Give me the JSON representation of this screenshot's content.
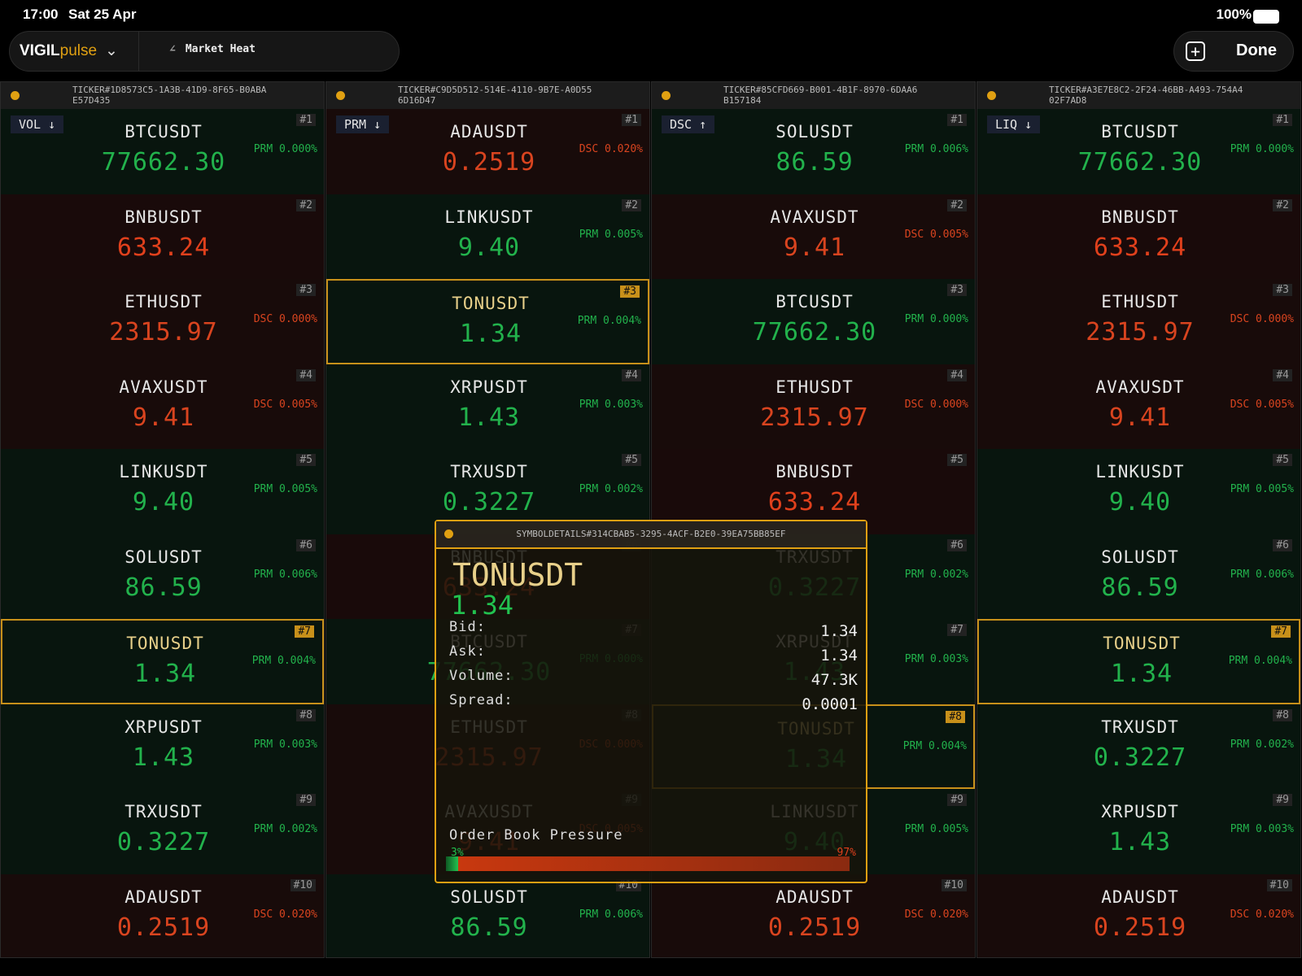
{
  "status": {
    "time": "17:00",
    "date": "Sat 25 Apr",
    "battery": "100%"
  },
  "toolbar": {
    "brand": "VIGIL",
    "brand_suffix": "pulse",
    "view": "Market Heat",
    "done": "Done"
  },
  "panels": [
    {
      "id": "TICKER#1D8573C5-1A3B-41D9-8F65-B0ABAE57D435",
      "sort": "VOL ↓",
      "rows": [
        {
          "rank": "#1",
          "symbol": "BTCUSDT",
          "price": "77662.30",
          "tag": "PRM 0.000%",
          "color": "#22b24c"
        },
        {
          "rank": "#2",
          "symbol": "BNBUSDT",
          "price": "633.24",
          "color": "#e0401c"
        },
        {
          "rank": "#3",
          "symbol": "ETHUSDT",
          "price": "2315.97",
          "tag": "DSC 0.000%",
          "color": "#d9441f"
        },
        {
          "rank": "#4",
          "symbol": "AVAXUSDT",
          "price": "9.41",
          "tag": "DSC 0.005%",
          "color": "#d9441f"
        },
        {
          "rank": "#5",
          "symbol": "LINKUSDT",
          "price": "9.40",
          "tag": "PRM 0.005%",
          "color": "#22b24c"
        },
        {
          "rank": "#6",
          "symbol": "SOLUSDT",
          "price": "86.59",
          "tag": "PRM 0.006%",
          "color": "#22b24c"
        },
        {
          "rank": "#7",
          "symbol": "TONUSDT",
          "price": "1.34",
          "tag": "PRM 0.004%",
          "color": "#22b24c",
          "highlight": true
        },
        {
          "rank": "#8",
          "symbol": "XRPUSDT",
          "price": "1.43",
          "tag": "PRM 0.003%",
          "color": "#22b24c"
        },
        {
          "rank": "#9",
          "symbol": "TRXUSDT",
          "price": "0.3227",
          "tag": "PRM 0.002%",
          "color": "#22b24c"
        },
        {
          "rank": "#10",
          "symbol": "ADAUSDT",
          "price": "0.2519",
          "tag": "DSC 0.020%",
          "color": "#d9441f"
        }
      ]
    },
    {
      "id": "TICKER#C9D5D512-514E-4110-9B7E-A0D556D16D47",
      "sort": "PRM ↓",
      "rows": [
        {
          "rank": "#1",
          "symbol": "ADAUSDT",
          "price": "0.2519",
          "tag": "DSC 0.020%",
          "color": "#d9441f"
        },
        {
          "rank": "#2",
          "symbol": "LINKUSDT",
          "price": "9.40",
          "tag": "PRM 0.005%",
          "color": "#22b24c"
        },
        {
          "rank": "#3",
          "symbol": "TONUSDT",
          "price": "1.34",
          "tag": "PRM 0.004%",
          "color": "#22b24c",
          "highlight": true
        },
        {
          "rank": "#4",
          "symbol": "XRPUSDT",
          "price": "1.43",
          "tag": "PRM 0.003%",
          "color": "#22b24c"
        },
        {
          "rank": "#5",
          "symbol": "TRXUSDT",
          "price": "0.3227",
          "tag": "PRM 0.002%",
          "color": "#22b24c"
        },
        {
          "rank": "#6",
          "symbol": "BNBUSDT",
          "price": "633.24",
          "color": "#e0401c"
        },
        {
          "rank": "#7",
          "symbol": "BTCUSDT",
          "price": "77662.30",
          "tag": "PRM 0.000%",
          "color": "#22b24c"
        },
        {
          "rank": "#8",
          "symbol": "ETHUSDT",
          "price": "2315.97",
          "tag": "DSC 0.000%",
          "color": "#d9441f"
        },
        {
          "rank": "#9",
          "symbol": "AVAXUSDT",
          "price": "9.41",
          "tag": "DSC 0.005%",
          "color": "#d9441f"
        },
        {
          "rank": "#10",
          "symbol": "SOLUSDT",
          "price": "86.59",
          "tag": "PRM 0.006%",
          "color": "#22b24c"
        }
      ]
    },
    {
      "id": "TICKER#85CFD669-B001-4B1F-8970-6DAA6B157184",
      "sort": "DSC ↑",
      "rows": [
        {
          "rank": "#1",
          "symbol": "SOLUSDT",
          "price": "86.59",
          "tag": "PRM 0.006%",
          "color": "#22b24c"
        },
        {
          "rank": "#2",
          "symbol": "AVAXUSDT",
          "price": "9.41",
          "tag": "DSC 0.005%",
          "color": "#d9441f"
        },
        {
          "rank": "#3",
          "symbol": "BTCUSDT",
          "price": "77662.30",
          "tag": "PRM 0.000%",
          "color": "#22b24c"
        },
        {
          "rank": "#4",
          "symbol": "ETHUSDT",
          "price": "2315.97",
          "tag": "DSC 0.000%",
          "color": "#d9441f"
        },
        {
          "rank": "#5",
          "symbol": "BNBUSDT",
          "price": "633.24",
          "color": "#e0401c"
        },
        {
          "rank": "#6",
          "symbol": "TRXUSDT",
          "price": "0.3227",
          "tag": "PRM 0.002%",
          "color": "#22b24c"
        },
        {
          "rank": "#7",
          "symbol": "XRPUSDT",
          "price": "1.43",
          "tag": "PRM 0.003%",
          "color": "#22b24c"
        },
        {
          "rank": "#8",
          "symbol": "TONUSDT",
          "price": "1.34",
          "tag": "PRM 0.004%",
          "color": "#22b24c",
          "highlight": true
        },
        {
          "rank": "#9",
          "symbol": "LINKUSDT",
          "price": "9.40",
          "tag": "PRM 0.005%",
          "color": "#22b24c"
        },
        {
          "rank": "#10",
          "symbol": "ADAUSDT",
          "price": "0.2519",
          "tag": "DSC 0.020%",
          "color": "#d9441f"
        }
      ]
    },
    {
      "id": "TICKER#A3E7E8C2-2F24-46BB-A493-754A402F7AD8",
      "sort": "LIQ ↓",
      "rows": [
        {
          "rank": "#1",
          "symbol": "BTCUSDT",
          "price": "77662.30",
          "tag": "PRM 0.000%",
          "color": "#22b24c"
        },
        {
          "rank": "#2",
          "symbol": "BNBUSDT",
          "price": "633.24",
          "color": "#e0401c"
        },
        {
          "rank": "#3",
          "symbol": "ETHUSDT",
          "price": "2315.97",
          "tag": "DSC 0.000%",
          "color": "#d9441f"
        },
        {
          "rank": "#4",
          "symbol": "AVAXUSDT",
          "price": "9.41",
          "tag": "DSC 0.005%",
          "color": "#d9441f"
        },
        {
          "rank": "#5",
          "symbol": "LINKUSDT",
          "price": "9.40",
          "tag": "PRM 0.005%",
          "color": "#22b24c"
        },
        {
          "rank": "#6",
          "symbol": "SOLUSDT",
          "price": "86.59",
          "tag": "PRM 0.006%",
          "color": "#22b24c"
        },
        {
          "rank": "#7",
          "symbol": "TONUSDT",
          "price": "1.34",
          "tag": "PRM 0.004%",
          "color": "#22b24c",
          "highlight": true
        },
        {
          "rank": "#8",
          "symbol": "TRXUSDT",
          "price": "0.3227",
          "tag": "PRM 0.002%",
          "color": "#22b24c"
        },
        {
          "rank": "#9",
          "symbol": "XRPUSDT",
          "price": "1.43",
          "tag": "PRM 0.003%",
          "color": "#22b24c"
        },
        {
          "rank": "#10",
          "symbol": "ADAUSDT",
          "price": "0.2519",
          "tag": "DSC 0.020%",
          "color": "#d9441f"
        }
      ]
    }
  ],
  "detail": {
    "id": "SYMBOLDETAILS#314CBAB5-3295-4ACF-B2E0-39EA75BB85EF",
    "symbol": "TONUSDT",
    "price": "1.34",
    "fields": [
      {
        "label": "Bid:",
        "value": "1.34"
      },
      {
        "label": "Ask:",
        "value": "1.34"
      },
      {
        "label": "Volume:",
        "value": "47.3K"
      },
      {
        "label": "Spread:",
        "value": "0.0001"
      }
    ],
    "pressure_title": "Order Book Pressure",
    "pressure": {
      "bid": {
        "value": 3,
        "label": "3%"
      },
      "ask": {
        "value": 97,
        "label": "97%"
      }
    }
  }
}
